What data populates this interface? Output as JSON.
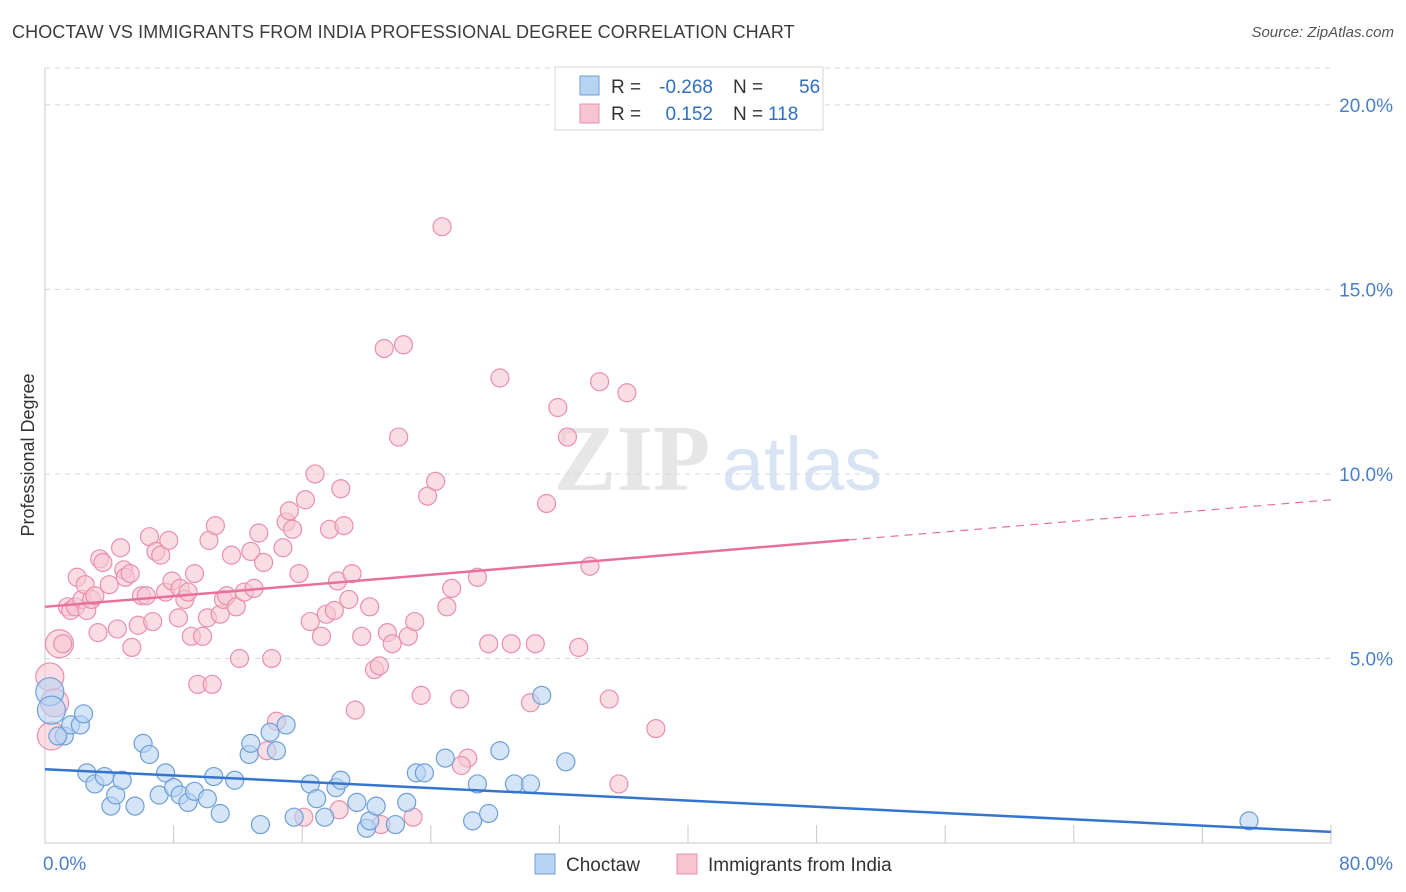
{
  "title": "CHOCTAW VS IMMIGRANTS FROM INDIA PROFESSIONAL DEGREE CORRELATION CHART",
  "source": "Source: ZipAtlas.com",
  "watermark": {
    "zip": "ZIP",
    "atlas": "atlas"
  },
  "colors": {
    "choctaw_fill": "#b8d3f2",
    "choctaw_stroke": "#6f9fd8",
    "choctaw_line": "#3575d0",
    "india_fill": "#f7c4d4",
    "india_stroke": "#e890ab",
    "india_line": "#e8719a",
    "tick": "#4a7fc8",
    "grid": "#d8d8d8"
  },
  "legend": {
    "rows": [
      {
        "r_label": "R =",
        "r_value": "-0.268",
        "n_label": "N =",
        "n_value": "56"
      },
      {
        "r_label": "R =",
        "r_value": "0.152",
        "n_label": "N =",
        "n_value": "118"
      }
    ]
  },
  "chart_data": {
    "type": "scatter",
    "title": "CHOCTAW VS IMMIGRANTS FROM INDIA PROFESSIONAL DEGREE CORRELATION CHART",
    "xlabel": "",
    "ylabel": "Professional Degree",
    "xlim": [
      0,
      80
    ],
    "ylim": [
      0,
      21
    ],
    "x_tick_labels": [
      "0.0%",
      "80.0%"
    ],
    "y_ticks": [
      5,
      10,
      15,
      20
    ],
    "y_tick_labels": [
      "5.0%",
      "10.0%",
      "15.0%",
      "20.0%"
    ],
    "grid": true,
    "legend_position": "top-center",
    "series": [
      {
        "name": "Choctaw",
        "r": -0.268,
        "n": 56,
        "trend": {
          "x0": 0,
          "y0": 2.0,
          "x1": 80,
          "y1": 0.3
        },
        "points": [
          [
            0.3,
            4.1
          ],
          [
            1.2,
            2.9
          ],
          [
            1.6,
            3.2
          ],
          [
            2.2,
            3.2
          ],
          [
            2.4,
            3.5
          ],
          [
            2.6,
            1.9
          ],
          [
            3.1,
            1.6
          ],
          [
            3.7,
            1.8
          ],
          [
            4.1,
            1.0
          ],
          [
            4.4,
            1.3
          ],
          [
            4.8,
            1.7
          ],
          [
            5.6,
            1.0
          ],
          [
            6.1,
            2.7
          ],
          [
            6.5,
            2.4
          ],
          [
            7.1,
            1.3
          ],
          [
            7.5,
            1.9
          ],
          [
            8.0,
            1.5
          ],
          [
            8.4,
            1.3
          ],
          [
            8.9,
            1.1
          ],
          [
            9.3,
            1.4
          ],
          [
            10.1,
            1.2
          ],
          [
            10.5,
            1.8
          ],
          [
            10.9,
            0.8
          ],
          [
            11.8,
            1.7
          ],
          [
            12.7,
            2.4
          ],
          [
            12.8,
            2.7
          ],
          [
            13.4,
            0.5
          ],
          [
            14.0,
            3.0
          ],
          [
            14.4,
            2.5
          ],
          [
            15.0,
            3.2
          ],
          [
            15.5,
            0.7
          ],
          [
            16.5,
            1.6
          ],
          [
            16.9,
            1.2
          ],
          [
            17.4,
            0.7
          ],
          [
            18.1,
            1.5
          ],
          [
            18.4,
            1.7
          ],
          [
            19.4,
            1.1
          ],
          [
            20.0,
            0.4
          ],
          [
            20.2,
            0.6
          ],
          [
            20.6,
            1.0
          ],
          [
            21.8,
            0.5
          ],
          [
            22.5,
            1.1
          ],
          [
            23.1,
            1.9
          ],
          [
            23.6,
            1.9
          ],
          [
            24.9,
            2.3
          ],
          [
            26.6,
            0.6
          ],
          [
            26.9,
            1.6
          ],
          [
            27.6,
            0.8
          ],
          [
            28.3,
            2.5
          ],
          [
            29.2,
            1.6
          ],
          [
            30.2,
            1.6
          ],
          [
            30.9,
            4.0
          ],
          [
            32.4,
            2.2
          ],
          [
            74.9,
            0.6
          ],
          [
            0.4,
            3.6
          ],
          [
            0.8,
            2.9
          ]
        ]
      },
      {
        "name": "Immigrants from India",
        "r": 0.152,
        "n": 118,
        "trend": {
          "x0": 0,
          "y0": 6.4,
          "x1": 80,
          "y1": 9.3,
          "solid_until_x": 50
        },
        "points": [
          [
            0.3,
            4.5
          ],
          [
            0.4,
            2.9
          ],
          [
            0.6,
            3.8
          ],
          [
            0.9,
            5.4
          ],
          [
            1.1,
            5.4
          ],
          [
            1.4,
            6.4
          ],
          [
            1.6,
            6.3
          ],
          [
            1.9,
            6.4
          ],
          [
            2.0,
            7.2
          ],
          [
            2.3,
            6.6
          ],
          [
            2.5,
            7.0
          ],
          [
            2.6,
            6.3
          ],
          [
            2.9,
            6.6
          ],
          [
            3.1,
            6.7
          ],
          [
            3.3,
            5.7
          ],
          [
            3.4,
            7.7
          ],
          [
            3.6,
            7.6
          ],
          [
            4.0,
            7.0
          ],
          [
            4.5,
            5.8
          ],
          [
            4.7,
            8.0
          ],
          [
            4.9,
            7.4
          ],
          [
            5.0,
            7.2
          ],
          [
            5.3,
            7.3
          ],
          [
            5.4,
            5.3
          ],
          [
            5.8,
            5.9
          ],
          [
            6.0,
            6.7
          ],
          [
            6.3,
            6.7
          ],
          [
            6.5,
            8.3
          ],
          [
            6.7,
            6.0
          ],
          [
            6.9,
            7.9
          ],
          [
            7.2,
            7.8
          ],
          [
            7.5,
            6.8
          ],
          [
            7.7,
            8.2
          ],
          [
            7.9,
            7.1
          ],
          [
            8.3,
            6.1
          ],
          [
            8.4,
            6.9
          ],
          [
            8.7,
            6.6
          ],
          [
            8.9,
            6.8
          ],
          [
            9.1,
            5.6
          ],
          [
            9.3,
            7.3
          ],
          [
            9.5,
            4.3
          ],
          [
            9.8,
            5.6
          ],
          [
            10.1,
            6.1
          ],
          [
            10.2,
            8.2
          ],
          [
            10.4,
            4.3
          ],
          [
            10.6,
            8.6
          ],
          [
            10.9,
            6.2
          ],
          [
            11.1,
            6.6
          ],
          [
            11.3,
            6.7
          ],
          [
            11.6,
            7.8
          ],
          [
            11.9,
            6.4
          ],
          [
            12.1,
            5.0
          ],
          [
            12.4,
            6.8
          ],
          [
            12.8,
            7.9
          ],
          [
            13.0,
            6.9
          ],
          [
            13.3,
            8.4
          ],
          [
            13.6,
            7.6
          ],
          [
            14.1,
            5.0
          ],
          [
            14.4,
            3.3
          ],
          [
            14.8,
            8.0
          ],
          [
            15.0,
            8.7
          ],
          [
            15.2,
            9.0
          ],
          [
            15.4,
            8.5
          ],
          [
            15.8,
            7.3
          ],
          [
            16.2,
            9.3
          ],
          [
            16.5,
            6.0
          ],
          [
            16.8,
            10.0
          ],
          [
            17.2,
            5.6
          ],
          [
            17.5,
            6.2
          ],
          [
            17.7,
            8.5
          ],
          [
            18.0,
            6.3
          ],
          [
            18.2,
            7.1
          ],
          [
            18.4,
            9.6
          ],
          [
            18.6,
            8.6
          ],
          [
            18.9,
            6.6
          ],
          [
            19.1,
            7.3
          ],
          [
            19.3,
            3.6
          ],
          [
            19.7,
            5.6
          ],
          [
            20.2,
            6.4
          ],
          [
            20.5,
            4.7
          ],
          [
            20.8,
            4.8
          ],
          [
            21.1,
            13.4
          ],
          [
            21.3,
            5.7
          ],
          [
            21.6,
            5.4
          ],
          [
            22.0,
            11.0
          ],
          [
            22.3,
            13.5
          ],
          [
            22.6,
            5.6
          ],
          [
            23.0,
            6.0
          ],
          [
            23.4,
            4.0
          ],
          [
            23.8,
            9.4
          ],
          [
            24.3,
            9.8
          ],
          [
            24.7,
            16.7
          ],
          [
            25.0,
            6.4
          ],
          [
            25.3,
            6.9
          ],
          [
            25.8,
            3.9
          ],
          [
            26.3,
            2.3
          ],
          [
            26.9,
            7.2
          ],
          [
            27.6,
            5.4
          ],
          [
            28.3,
            12.6
          ],
          [
            29.0,
            5.4
          ],
          [
            30.2,
            3.8
          ],
          [
            30.5,
            5.4
          ],
          [
            31.2,
            9.2
          ],
          [
            31.9,
            11.8
          ],
          [
            32.5,
            11.0
          ],
          [
            33.2,
            5.3
          ],
          [
            33.9,
            7.5
          ],
          [
            34.5,
            12.5
          ],
          [
            35.1,
            3.9
          ],
          [
            35.7,
            1.6
          ],
          [
            36.2,
            12.2
          ],
          [
            38.0,
            3.1
          ],
          [
            16.1,
            0.7
          ],
          [
            18.3,
            0.9
          ],
          [
            20.9,
            0.5
          ],
          [
            22.9,
            0.7
          ],
          [
            25.9,
            2.1
          ],
          [
            13.8,
            2.5
          ]
        ]
      }
    ]
  },
  "axes": {
    "y_title": "Professional Degree",
    "x_min_label": "0.0%",
    "x_max_label": "80.0%"
  },
  "bottom_legend": {
    "items": [
      {
        "label": "Choctaw"
      },
      {
        "label": "Immigrants from India"
      }
    ]
  }
}
